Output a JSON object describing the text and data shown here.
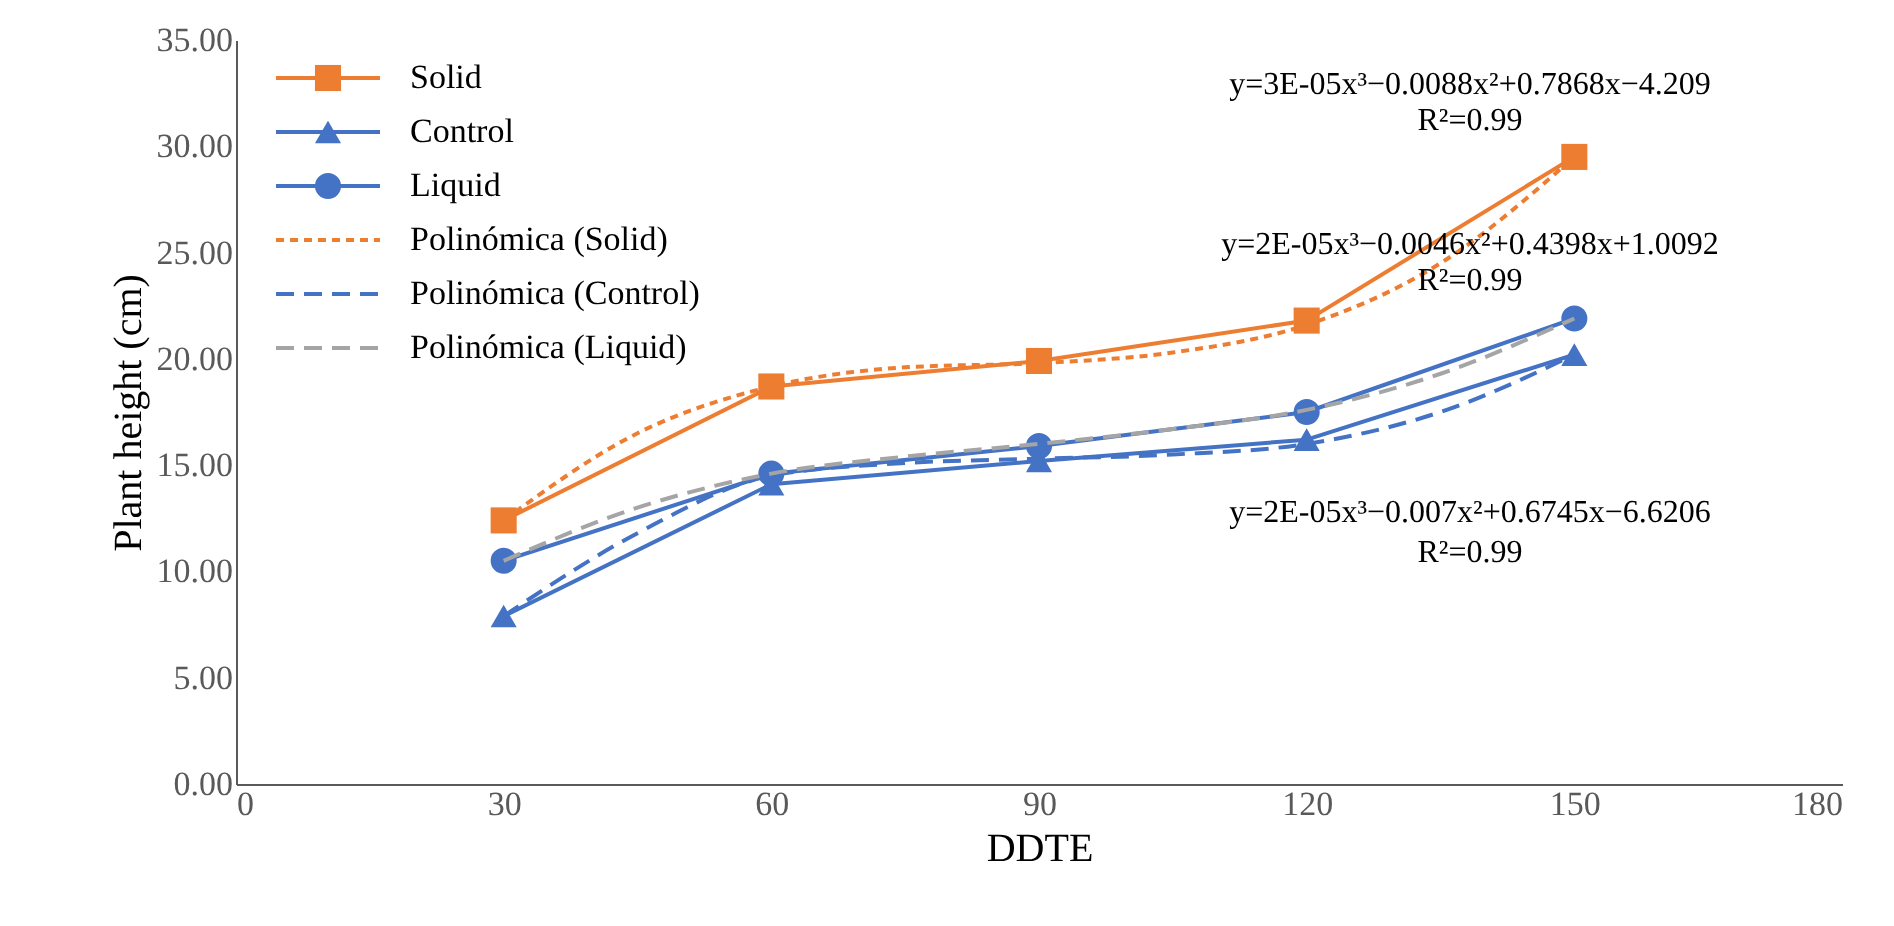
{
  "chart_data": {
    "type": "line",
    "xlabel": "DDTE",
    "ylabel": "Plant height (cm)",
    "xlim": [
      0,
      180
    ],
    "xticks": [
      0,
      30,
      60,
      90,
      120,
      150,
      180
    ],
    "ylim": [
      0,
      35
    ],
    "yticks": [
      {
        "value": 0,
        "label": "0.00"
      },
      {
        "value": 5,
        "label": "5.00"
      },
      {
        "value": 10,
        "label": "10.00"
      },
      {
        "value": 15,
        "label": "15.00"
      },
      {
        "value": 20,
        "label": "20.00"
      },
      {
        "value": 25,
        "label": "25.00"
      },
      {
        "value": 30,
        "label": "30.00"
      },
      {
        "value": 35,
        "label": "35.00"
      }
    ],
    "grid": false,
    "legend": "top left",
    "series": [
      {
        "name": "Solid",
        "color": "#ed7d31",
        "marker": "square",
        "line_style": "solid",
        "x": [
          30,
          60,
          90,
          120,
          150
        ],
        "values": [
          12.4,
          18.7,
          19.9,
          21.8,
          29.5
        ]
      },
      {
        "name": "Control",
        "color": "#4472c4",
        "marker": "triangle",
        "line_style": "solid",
        "x": [
          30,
          60,
          90,
          120,
          150
        ],
        "values": [
          7.9,
          14.1,
          15.2,
          16.2,
          20.2
        ]
      },
      {
        "name": "Liquid",
        "color": "#4472c4",
        "marker": "circle",
        "line_style": "solid",
        "x": [
          30,
          60,
          90,
          120,
          150
        ],
        "values": [
          10.5,
          14.6,
          15.9,
          17.5,
          21.9
        ]
      },
      {
        "name": "Polinómica (Solid)",
        "color": "#ed7d31",
        "marker": "none",
        "line_style": "dotted",
        "x": [
          30,
          45,
          60,
          75,
          90,
          105,
          120,
          135,
          150
        ],
        "values": [
          12.4,
          16.5,
          18.7,
          19.6,
          19.8,
          20.3,
          21.6,
          24.5,
          29.5
        ]
      },
      {
        "name": "Polinómica (Control)",
        "color": "#4472c4",
        "marker": "none",
        "line_style": "dashed",
        "x": [
          30,
          45,
          60,
          75,
          90,
          105,
          120,
          135,
          150
        ],
        "values": [
          7.9,
          11.8,
          14.5,
          15.1,
          15.3,
          15.5,
          16.0,
          17.5,
          20.2
        ]
      },
      {
        "name": "Polinómica (Liquid)",
        "color": "#a5a5a5",
        "marker": "none",
        "line_style": "dashed",
        "x": [
          30,
          45,
          60,
          75,
          90,
          105,
          120,
          135,
          150
        ],
        "values": [
          10.5,
          13.0,
          14.6,
          15.4,
          16.0,
          16.7,
          17.6,
          19.3,
          21.9
        ]
      }
    ],
    "annotations": [
      "y=3E-05x³−0.0088x²+0.7868x−4.209",
      "R²=0.99",
      "y=2E-05x³−0.0046x²+0.4398x+1.0092",
      "R²=0.99",
      "y=2E-05x³−0.007x²+0.6745x−6.6206",
      "R²=0.99"
    ]
  }
}
